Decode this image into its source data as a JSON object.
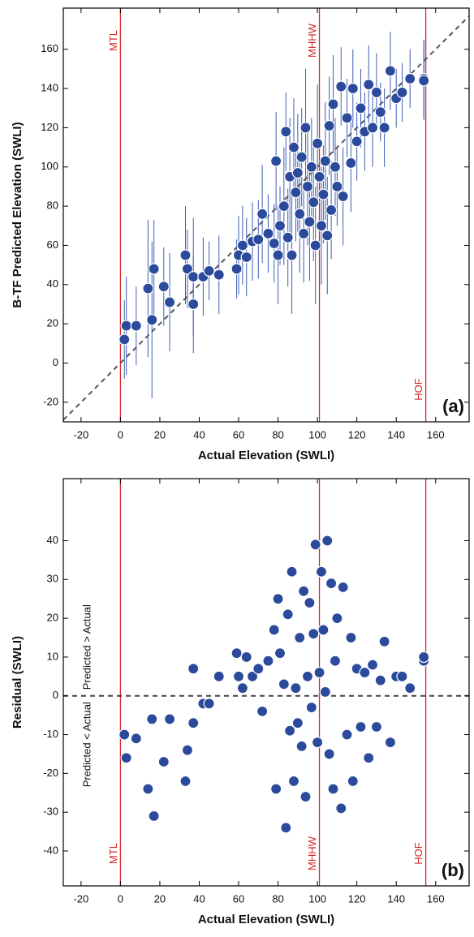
{
  "chart_data": [
    {
      "type": "scatter",
      "panel_label": "(a)",
      "x_label": "Actual Elevation (SWLI)",
      "y_label": "B-TF Predicted Elevation (SWLI)",
      "xlim": [
        -29,
        177
      ],
      "ylim": [
        -30,
        181
      ],
      "xticks": [
        -20,
        0,
        20,
        40,
        60,
        80,
        100,
        120,
        140,
        160
      ],
      "yticks": [
        -20,
        0,
        20,
        40,
        60,
        80,
        100,
        120,
        140,
        160
      ],
      "identity_line": true,
      "vlines": [
        {
          "value": 0,
          "label": "MTL",
          "anchor": "top"
        },
        {
          "value": 101,
          "label": "MHHW",
          "anchor": "top"
        },
        {
          "value": 155,
          "label": "HOF",
          "anchor": "bottom"
        }
      ],
      "x": [
        2,
        3,
        8,
        14,
        16,
        17,
        22,
        25,
        33,
        34,
        37,
        37,
        42,
        45,
        50,
        59,
        60,
        62,
        64,
        67,
        70,
        72,
        75,
        78,
        79,
        80,
        81,
        83,
        84,
        85,
        86,
        87,
        88,
        89,
        90,
        91,
        92,
        93,
        94,
        95,
        96,
        97,
        98,
        99,
        100,
        101,
        102,
        103,
        104,
        105,
        106,
        107,
        108,
        109,
        110,
        112,
        113,
        115,
        117,
        118,
        120,
        122,
        124,
        126,
        128,
        130,
        132,
        134,
        137,
        140,
        143,
        147,
        154,
        154
      ],
      "series": [
        {
          "color": "#2b4a9b",
          "error_color": "#3d5db3",
          "values": [
            12,
            19,
            19,
            38,
            22,
            48,
            39,
            31,
            55,
            48,
            30,
            44,
            44,
            47,
            45,
            48,
            55,
            60,
            54,
            62,
            63,
            76,
            66,
            61,
            103,
            55,
            70,
            80,
            118,
            64,
            95,
            55,
            110,
            87,
            97,
            76,
            105,
            66,
            120,
            90,
            72,
            100,
            82,
            60,
            112,
            95,
            70,
            86,
            103,
            65,
            121,
            78,
            132,
            100,
            90,
            141,
            85,
            125,
            102,
            140,
            113,
            130,
            118,
            142,
            120,
            138,
            128,
            120,
            149,
            135,
            138,
            145,
            145,
            144
          ],
          "errors": [
            20,
            25,
            20,
            35,
            40,
            25,
            20,
            25,
            25,
            20,
            25,
            30,
            20,
            15,
            20,
            15,
            20,
            20,
            20,
            20,
            20,
            25,
            20,
            20,
            25,
            25,
            20,
            30,
            20,
            25,
            30,
            30,
            25,
            25,
            30,
            30,
            25,
            25,
            30,
            30,
            30,
            25,
            30,
            30,
            30,
            30,
            30,
            25,
            30,
            30,
            25,
            25,
            25,
            25,
            20,
            20,
            25,
            20,
            25,
            20,
            20,
            20,
            20,
            20,
            20,
            20,
            15,
            20,
            20,
            15,
            15,
            15,
            20,
            20
          ]
        }
      ]
    },
    {
      "type": "scatter",
      "panel_label": "(b)",
      "x_label": "Actual Elevation (SWLI)",
      "y_label": "Residual (SWLI)",
      "xlim": [
        -29,
        177
      ],
      "ylim": [
        -49,
        56
      ],
      "xticks": [
        -20,
        0,
        20,
        40,
        60,
        80,
        100,
        120,
        140,
        160
      ],
      "yticks": [
        -40,
        -30,
        -20,
        -10,
        0,
        10,
        20,
        30,
        40
      ],
      "zero_line": true,
      "notes": [
        "Predicted > Actual",
        "Predicted < Actual"
      ],
      "vlines": [
        {
          "value": 0,
          "label": "MTL",
          "anchor": "bottom"
        },
        {
          "value": 101,
          "label": "MHHW",
          "anchor": "bottom"
        },
        {
          "value": 155,
          "label": "HOF",
          "anchor": "bottom"
        }
      ],
      "x": [
        2,
        3,
        8,
        14,
        16,
        17,
        22,
        25,
        33,
        34,
        37,
        37,
        42,
        45,
        50,
        59,
        60,
        62,
        64,
        67,
        70,
        72,
        75,
        78,
        79,
        80,
        81,
        83,
        84,
        85,
        86,
        87,
        88,
        89,
        90,
        91,
        92,
        93,
        94,
        95,
        96,
        97,
        98,
        99,
        100,
        101,
        102,
        103,
        104,
        105,
        106,
        107,
        108,
        109,
        110,
        112,
        113,
        115,
        117,
        118,
        120,
        122,
        124,
        126,
        128,
        130,
        132,
        134,
        137,
        140,
        143,
        147,
        154,
        154
      ],
      "series": [
        {
          "color": "#2b4a9b",
          "values": [
            -10,
            -16,
            -11,
            -24,
            -6,
            -31,
            -17,
            -6,
            -22,
            -14,
            7,
            -7,
            -2,
            -2,
            5,
            11,
            5,
            2,
            10,
            5,
            7,
            -4,
            9,
            17,
            -24,
            25,
            11,
            3,
            -34,
            21,
            -9,
            32,
            -22,
            2,
            -7,
            15,
            -13,
            27,
            -26,
            5,
            24,
            -3,
            16,
            39,
            -12,
            6,
            32,
            17,
            1,
            40,
            -15,
            29,
            -24,
            9,
            20,
            -29,
            28,
            -10,
            15,
            -22,
            7,
            -8,
            6,
            -16,
            8,
            -8,
            4,
            14,
            -12,
            5,
            5,
            2,
            9,
            10
          ]
        }
      ]
    }
  ]
}
